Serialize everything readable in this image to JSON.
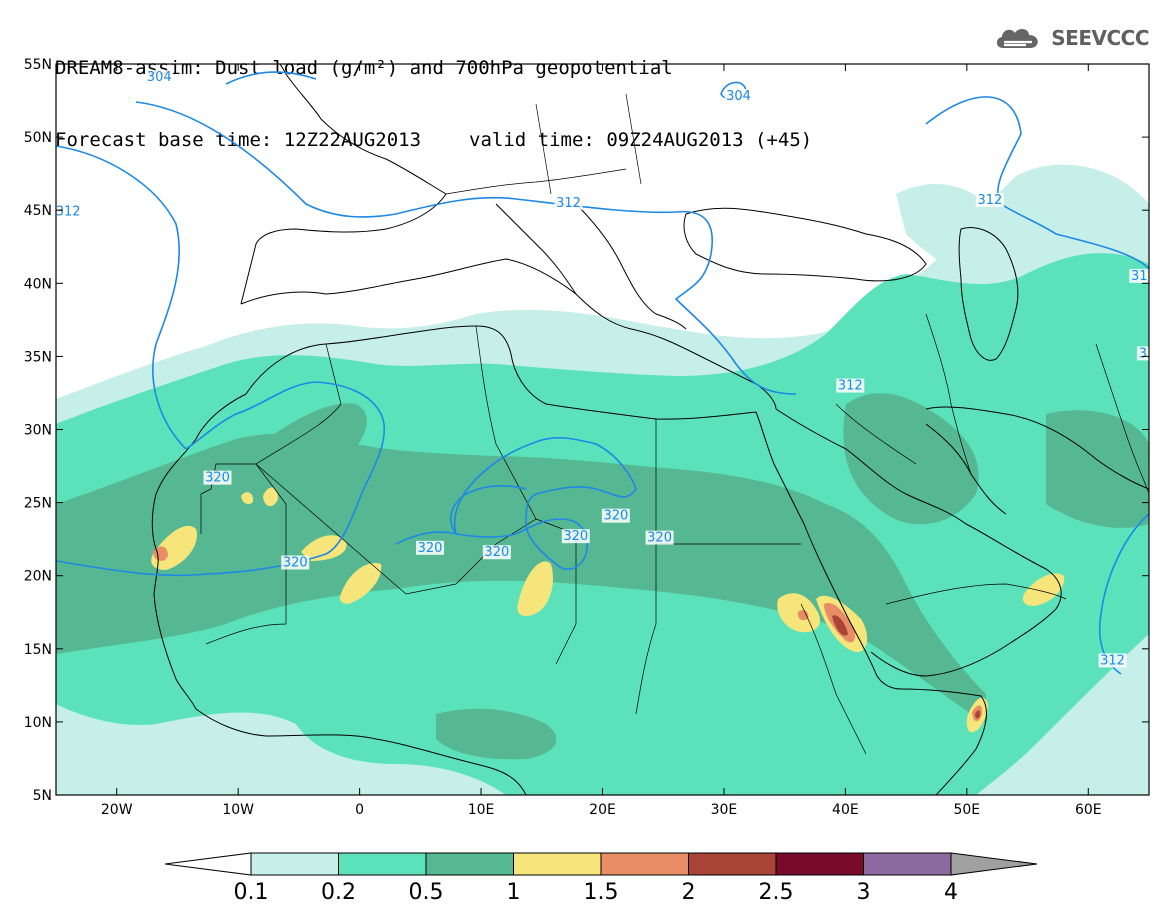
{
  "header": {
    "title": "DREAM8-assim: Dust load (g/m²) and 700hPa geopotential",
    "base_time": "Forecast base time: 12Z22AUG2013",
    "valid_time": "valid time: 09Z24AUG2013 (+45)"
  },
  "logo": {
    "text": "SEEVCCC",
    "icon": "cloud-icon"
  },
  "map": {
    "extent": {
      "lon_min": -25,
      "lon_max": 65,
      "lat_min": 5,
      "lat_max": 55
    },
    "lat_ticks": [
      {
        "value": 55,
        "label": "55N"
      },
      {
        "value": 50,
        "label": "50N"
      },
      {
        "value": 45,
        "label": "45N"
      },
      {
        "value": 40,
        "label": "40N"
      },
      {
        "value": 35,
        "label": "35N"
      },
      {
        "value": 30,
        "label": "30N"
      },
      {
        "value": 25,
        "label": "25N"
      },
      {
        "value": 20,
        "label": "20N"
      },
      {
        "value": 15,
        "label": "15N"
      },
      {
        "value": 10,
        "label": "10N"
      },
      {
        "value": 5,
        "label": "5N"
      }
    ],
    "lon_ticks": [
      {
        "value": -20,
        "label": "20W"
      },
      {
        "value": -10,
        "label": "10W"
      },
      {
        "value": 0,
        "label": "0"
      },
      {
        "value": 10,
        "label": "10E"
      },
      {
        "value": 20,
        "label": "20E"
      },
      {
        "value": 30,
        "label": "30E"
      },
      {
        "value": 40,
        "label": "40E"
      },
      {
        "value": 50,
        "label": "50E"
      },
      {
        "value": 60,
        "label": "60E"
      }
    ],
    "contour_color": "#1e88e5",
    "contour_labels": [
      {
        "text": "304",
        "lon": -16.5,
        "lat": 53.9
      },
      {
        "text": "304",
        "lon": 31.2,
        "lat": 52.6
      },
      {
        "text": "312",
        "lon": -24.0,
        "lat": 44.7
      },
      {
        "text": "312",
        "lon": 17.2,
        "lat": 45.3
      },
      {
        "text": "312",
        "lon": 62.0,
        "lat": 14.0
      },
      {
        "text": "312",
        "lon": 40.4,
        "lat": 32.8
      },
      {
        "text": "312",
        "lon": 51.9,
        "lat": 45.5
      },
      {
        "text": "31",
        "lon": 64.2,
        "lat": 40.3
      },
      {
        "text": "3",
        "lon": 64.5,
        "lat": 35.0
      },
      {
        "text": "320",
        "lon": -11.7,
        "lat": 26.5
      },
      {
        "text": "320",
        "lon": -5.3,
        "lat": 20.7
      },
      {
        "text": "320",
        "lon": 5.8,
        "lat": 21.7
      },
      {
        "text": "320",
        "lon": 11.3,
        "lat": 21.4
      },
      {
        "text": "320",
        "lon": 17.8,
        "lat": 22.5
      },
      {
        "text": "320",
        "lon": 21.1,
        "lat": 23.9
      },
      {
        "text": "320",
        "lon": 24.7,
        "lat": 22.4
      }
    ]
  },
  "legend": {
    "labels": [
      "0.1",
      "0.2",
      "0.5",
      "1",
      "1.5",
      "2",
      "2.5",
      "3",
      "4"
    ],
    "colors": [
      "#ffffff",
      "#c5efe8",
      "#5be2bb",
      "#55b893",
      "#f5e57a",
      "#e98d67",
      "#a84536",
      "#7a0a2a",
      "#8c6aa0",
      "#a0a0a0"
    ]
  }
}
